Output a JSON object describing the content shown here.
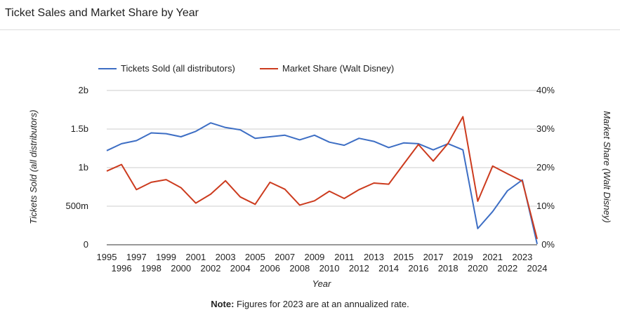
{
  "page": {
    "title": "Ticket Sales and Market Share by Year",
    "note_label": "Note:",
    "note_text": " Figures for 2023 are at an annualized rate."
  },
  "chart_data": {
    "type": "line",
    "x": [
      1995,
      1996,
      1997,
      1998,
      1999,
      2000,
      2001,
      2002,
      2003,
      2004,
      2005,
      2006,
      2007,
      2008,
      2009,
      2010,
      2011,
      2012,
      2013,
      2014,
      2015,
      2016,
      2017,
      2018,
      2019,
      2020,
      2021,
      2022,
      2023,
      2024
    ],
    "xlabel": "Year",
    "series": [
      {
        "name": "Tickets Sold (all distributors)",
        "axis": "left",
        "color": "#3d6ec4",
        "values": [
          1220000000.0,
          1310000000.0,
          1350000000.0,
          1450000000.0,
          1440000000.0,
          1400000000.0,
          1470000000.0,
          1580000000.0,
          1520000000.0,
          1490000000.0,
          1380000000.0,
          1400000000.0,
          1420000000.0,
          1360000000.0,
          1420000000.0,
          1330000000.0,
          1290000000.0,
          1380000000.0,
          1340000000.0,
          1260000000.0,
          1320000000.0,
          1310000000.0,
          1230000000.0,
          1310000000.0,
          1230000000.0,
          210000000.0,
          430000000.0,
          700000000.0,
          840000000.0,
          10000000.0
        ]
      },
      {
        "name": "Market Share (Walt Disney)",
        "axis": "right",
        "color": "#cc3b1e",
        "values": [
          19.1,
          20.8,
          14.3,
          16.2,
          16.9,
          14.8,
          10.8,
          13.1,
          16.6,
          12.4,
          10.5,
          16.2,
          14.4,
          10.3,
          11.4,
          13.9,
          12.0,
          14.3,
          16.0,
          15.7,
          20.9,
          26.0,
          21.7,
          26.3,
          33.2,
          11.3,
          20.4,
          18.4,
          16.5,
          1.5
        ]
      }
    ],
    "y_left": {
      "label": "Tickets Sold (all distributors)",
      "range": [
        0,
        2000000000
      ],
      "ticks": [
        "0",
        "500m",
        "1b",
        "1.5b",
        "2b"
      ]
    },
    "y_right": {
      "label": "Market Share (Walt Disney)",
      "range": [
        0,
        40
      ],
      "ticks": [
        "0%",
        "10%",
        "20%",
        "30%",
        "40%"
      ]
    },
    "legend": "top-left",
    "grid": true
  }
}
